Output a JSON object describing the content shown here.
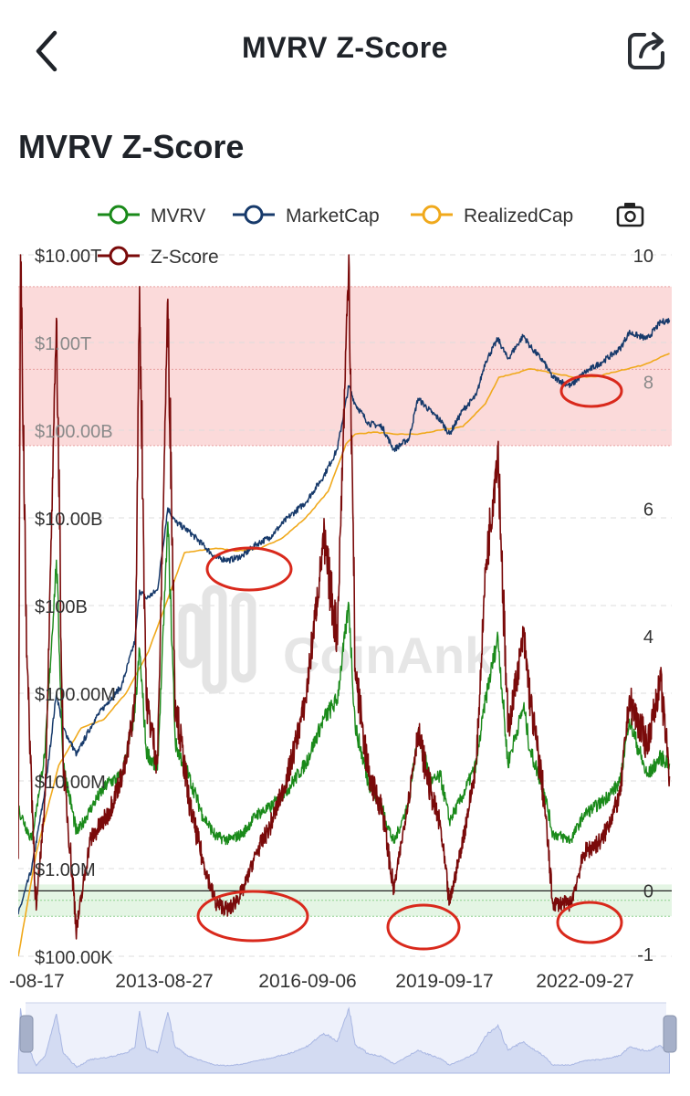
{
  "nav": {
    "title": "MVRV Z-Score",
    "back_icon": "chevron-left-icon",
    "share_icon": "share-icon"
  },
  "page_title": "MVRV Z-Score",
  "colors": {
    "mvrv": "#1a8a1a",
    "marketcap": "#173a6b",
    "realizedcap": "#f0a91c",
    "zscore": "#7a0a0a",
    "top_zone": "#fbdada",
    "bottom_zone": "#e4f5e4",
    "annotation": "#d9291c"
  },
  "chart_data": {
    "type": "line",
    "title": "",
    "legend": {
      "placement": "top",
      "items": [
        {
          "name": "MVRV",
          "color": "#1a8a1a"
        },
        {
          "name": "MarketCap",
          "color": "#173a6b"
        },
        {
          "name": "RealizedCap",
          "color": "#f0a91c"
        },
        {
          "name": "Z-Score",
          "color": "#7a0a0a"
        }
      ]
    },
    "x_ticks": [
      "-08-17",
      "2013-08-27",
      "2016-09-06",
      "2019-09-17",
      "2022-09-27"
    ],
    "left_axis": {
      "scale": "log",
      "ticks": [
        "$10.00T",
        "$1.00T",
        "$100.00B",
        "$10.00B",
        "$100B",
        "$100.00M",
        "$10.00M",
        "$1.00M",
        "$100.00K"
      ]
    },
    "right_axis": {
      "ticks": [
        "10",
        "8",
        "6",
        "4",
        "0",
        "-1"
      ],
      "ylim": [
        -1,
        10
      ]
    },
    "grid": true,
    "zones": [
      {
        "name": "top",
        "z_from": 7,
        "z_to": 9.5
      },
      {
        "name": "bottom",
        "z_from": -0.4,
        "z_to": 0.1
      }
    ],
    "watermark": "CoinAnk",
    "series": [
      {
        "name": "MVRV",
        "x": [
          2010.6,
          2010.9,
          2011.2,
          2011.45,
          2011.6,
          2011.9,
          2012.3,
          2012.6,
          2012.9,
          2013.2,
          2013.3,
          2013.45,
          2013.7,
          2013.93,
          2014.1,
          2014.4,
          2014.7,
          2015.0,
          2015.3,
          2015.6,
          2015.9,
          2016.2,
          2016.6,
          2017.0,
          2017.4,
          2017.7,
          2017.96,
          2018.1,
          2018.4,
          2018.7,
          2018.96,
          2019.3,
          2019.5,
          2019.8,
          2020.0,
          2020.2,
          2020.5,
          2020.8,
          2021.0,
          2021.28,
          2021.5,
          2021.85,
          2022.0,
          2022.3,
          2022.5,
          2022.9,
          2023.2,
          2023.6,
          2024.0,
          2024.2,
          2024.6,
          2024.9,
          2025.1
        ],
        "y": [
          1.3,
          0.8,
          2.2,
          5.2,
          2.0,
          0.9,
          1.4,
          1.7,
          1.8,
          2.8,
          3.8,
          2.2,
          1.9,
          5.8,
          2.3,
          1.8,
          1.2,
          0.85,
          0.8,
          0.9,
          1.2,
          1.3,
          1.6,
          2.0,
          2.7,
          3.0,
          4.5,
          2.6,
          1.7,
          1.3,
          0.75,
          1.4,
          2.5,
          1.7,
          1.8,
          1.1,
          1.5,
          2.0,
          3.0,
          4.0,
          2.0,
          2.9,
          2.2,
          1.6,
          0.9,
          0.8,
          1.2,
          1.4,
          1.7,
          2.7,
          1.8,
          2.1,
          2.0
        ]
      },
      {
        "name": "MarketCap",
        "x": [
          2010.6,
          2010.9,
          2011.2,
          2011.45,
          2011.6,
          2011.9,
          2012.3,
          2012.6,
          2012.9,
          2013.2,
          2013.3,
          2013.45,
          2013.7,
          2013.93,
          2014.1,
          2014.4,
          2014.7,
          2015.0,
          2015.3,
          2015.6,
          2015.9,
          2016.2,
          2016.6,
          2017.0,
          2017.4,
          2017.7,
          2017.96,
          2018.1,
          2018.4,
          2018.7,
          2018.96,
          2019.3,
          2019.5,
          2019.8,
          2020.0,
          2020.2,
          2020.5,
          2020.8,
          2021.0,
          2021.28,
          2021.5,
          2021.85,
          2022.0,
          2022.3,
          2022.5,
          2022.9,
          2023.2,
          2023.6,
          2024.0,
          2024.2,
          2024.6,
          2024.9,
          2025.1
        ],
        "y": [
          300000,
          1000000,
          8000000,
          100000000,
          40000000,
          20000000,
          50000000,
          80000000,
          120000000,
          400000000,
          1500000000,
          1200000000,
          1500000000,
          13000000000,
          9000000000,
          7000000000,
          5000000000,
          3500000000,
          3300000000,
          3700000000,
          5000000000,
          6000000000,
          10000000000,
          15000000000,
          30000000000,
          60000000000,
          320000000000,
          200000000000,
          120000000000,
          110000000000,
          60000000000,
          80000000000,
          230000000000,
          160000000000,
          130000000000,
          90000000000,
          170000000000,
          250000000000,
          600000000000,
          1100000000000,
          650000000000,
          1200000000000,
          900000000000,
          600000000000,
          400000000000,
          320000000000,
          450000000000,
          600000000000,
          850000000000,
          1300000000000,
          1100000000000,
          1700000000000,
          1800000000000
        ]
      },
      {
        "name": "RealizedCap",
        "x": [
          2010.6,
          2011.0,
          2011.5,
          2012.0,
          2012.5,
          2013.0,
          2013.5,
          2014.0,
          2014.3,
          2015.0,
          2015.5,
          2016.0,
          2016.5,
          2017.0,
          2017.5,
          2017.9,
          2018.1,
          2018.5,
          2019.0,
          2019.5,
          2020.0,
          2020.5,
          2021.0,
          2021.3,
          2021.7,
          2022.0,
          2022.5,
          2023.0,
          2023.5,
          2024.0,
          2024.5,
          2025.1
        ],
        "y": [
          100000,
          1500000,
          15000000,
          40000000,
          50000000,
          100000000,
          300000000,
          1500000000,
          4000000000,
          4500000000,
          4200000000,
          4500000000,
          6000000000,
          10000000000,
          20000000000,
          70000000000,
          90000000000,
          95000000000,
          90000000000,
          90000000000,
          100000000000,
          110000000000,
          200000000000,
          400000000000,
          450000000000,
          500000000000,
          450000000000,
          400000000000,
          410000000000,
          480000000000,
          550000000000,
          750000000000
        ]
      },
      {
        "name": "Z-Score",
        "x": [
          2010.6,
          2010.65,
          2010.8,
          2011.0,
          2011.2,
          2011.45,
          2011.6,
          2011.9,
          2012.2,
          2012.6,
          2013.0,
          2013.2,
          2013.3,
          2013.45,
          2013.7,
          2013.93,
          2014.1,
          2014.4,
          2014.7,
          2015.0,
          2015.3,
          2015.6,
          2015.9,
          2016.2,
          2016.6,
          2017.0,
          2017.4,
          2017.7,
          2017.96,
          2018.1,
          2018.4,
          2018.7,
          2018.96,
          2019.3,
          2019.5,
          2019.8,
          2020.0,
          2020.2,
          2020.5,
          2020.8,
          2021.0,
          2021.28,
          2021.5,
          2021.85,
          2022.0,
          2022.3,
          2022.5,
          2022.9,
          2023.2,
          2023.6,
          2024.0,
          2024.2,
          2024.6,
          2024.9,
          2025.1
        ],
        "y": [
          0.5,
          10.0,
          3.5,
          -0.3,
          1.5,
          9.0,
          2.0,
          -0.6,
          0.8,
          1.2,
          2.0,
          3.0,
          9.5,
          3.0,
          2.0,
          9.3,
          3.0,
          1.4,
          0.5,
          -0.2,
          -0.3,
          0.0,
          0.6,
          1.0,
          1.8,
          3.0,
          5.5,
          4.0,
          10.0,
          3.5,
          1.8,
          1.3,
          0.0,
          1.5,
          2.5,
          1.5,
          1.0,
          -0.2,
          0.8,
          2.0,
          5.0,
          7.0,
          2.5,
          4.0,
          3.0,
          1.5,
          -0.2,
          -0.2,
          0.6,
          0.8,
          1.5,
          3.0,
          2.3,
          3.3,
          1.8
        ]
      }
    ]
  }
}
